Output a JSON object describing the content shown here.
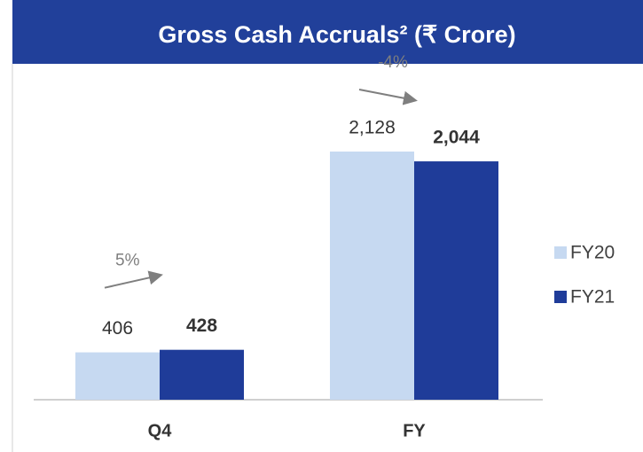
{
  "chart_data": {
    "type": "bar",
    "title": "Gross Cash Accruals² (₹ Crore)",
    "categories": [
      "Q4",
      "FY"
    ],
    "series": [
      {
        "name": "FY20",
        "color": "#c6d9f1",
        "values": [
          406,
          2128
        ],
        "value_labels": [
          "406",
          "2,128"
        ]
      },
      {
        "name": "FY21",
        "color": "#1f3c99",
        "values": [
          428,
          2044
        ],
        "value_labels": [
          "428",
          "2,044"
        ]
      }
    ],
    "annotations": [
      "5%",
      "-4%"
    ],
    "legend": "right"
  }
}
